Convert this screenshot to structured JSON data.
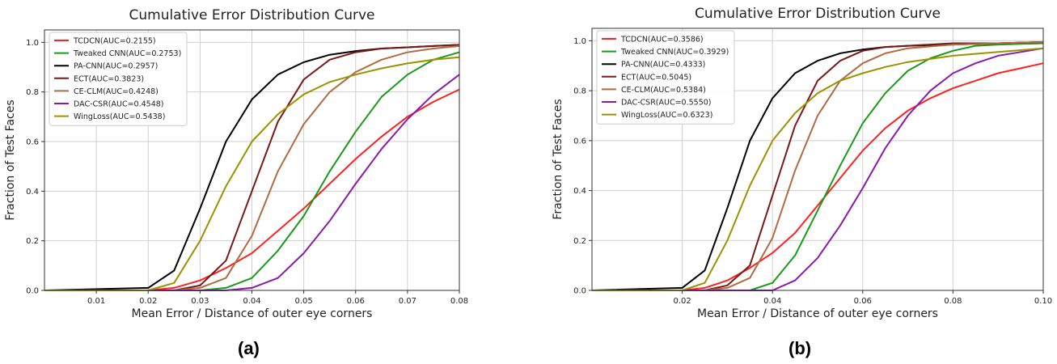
{
  "charts": [
    {
      "type": "line",
      "title": "Cumulative Error Distribution Curve",
      "xlabel": "Mean Error / Distance of outer eye corners",
      "ylabel": "Fraction of Test Faces",
      "caption": "(a)",
      "xlim": [
        0,
        0.08
      ],
      "ylim": [
        0,
        1.05
      ],
      "xticks": [
        0.01,
        0.02,
        0.03,
        0.04,
        0.05,
        0.06,
        0.07,
        0.08
      ],
      "yticks": [
        0.0,
        0.2,
        0.4,
        0.6,
        0.8,
        1.0
      ],
      "grid": true,
      "legend_position": "top-left",
      "series": [
        {
          "name": "TCDCN(AUC=0.2155)",
          "color": "#ff2020",
          "x": [
            0,
            0.02,
            0.025,
            0.03,
            0.035,
            0.04,
            0.045,
            0.05,
            0.055,
            0.06,
            0.065,
            0.07,
            0.075,
            0.08
          ],
          "y": [
            0,
            0,
            0.01,
            0.04,
            0.09,
            0.15,
            0.24,
            0.33,
            0.43,
            0.53,
            0.62,
            0.7,
            0.76,
            0.81
          ]
        },
        {
          "name": "Tweaked CNN(AUC=0.2753)",
          "color": "#1a9a1a",
          "x": [
            0,
            0.03,
            0.035,
            0.04,
            0.045,
            0.05,
            0.055,
            0.06,
            0.065,
            0.07,
            0.075,
            0.08
          ],
          "y": [
            0,
            0,
            0.01,
            0.05,
            0.16,
            0.3,
            0.48,
            0.64,
            0.78,
            0.87,
            0.93,
            0.96
          ]
        },
        {
          "name": "PA-CNN(AUC=0.2957)",
          "color": "#000000",
          "x": [
            0,
            0.02,
            0.025,
            0.03,
            0.035,
            0.04,
            0.045,
            0.05,
            0.055,
            0.06,
            0.065,
            0.07,
            0.075,
            0.08
          ],
          "y": [
            0,
            0.01,
            0.08,
            0.33,
            0.6,
            0.77,
            0.87,
            0.92,
            0.95,
            0.965,
            0.975,
            0.98,
            0.985,
            0.99
          ]
        },
        {
          "name": "ECT(AUC=0.3823)",
          "color": "#7a1818",
          "x": [
            0,
            0.025,
            0.03,
            0.035,
            0.04,
            0.045,
            0.05,
            0.055,
            0.06,
            0.065,
            0.07,
            0.075,
            0.08
          ],
          "y": [
            0,
            0,
            0.02,
            0.12,
            0.4,
            0.68,
            0.85,
            0.93,
            0.96,
            0.975,
            0.98,
            0.985,
            0.99
          ]
        },
        {
          "name": "CE-CLM(AUC=0.4248)",
          "color": "#b06b40",
          "x": [
            0,
            0.025,
            0.03,
            0.035,
            0.04,
            0.045,
            0.05,
            0.055,
            0.06,
            0.065,
            0.07,
            0.075,
            0.08
          ],
          "y": [
            0,
            0,
            0.01,
            0.05,
            0.22,
            0.48,
            0.67,
            0.8,
            0.88,
            0.93,
            0.96,
            0.975,
            0.985
          ]
        },
        {
          "name": "DAC-CSR(AUC=0.4548)",
          "color": "#8a1aa8",
          "x": [
            0,
            0.035,
            0.04,
            0.045,
            0.05,
            0.055,
            0.06,
            0.065,
            0.07,
            0.075,
            0.08
          ],
          "y": [
            0,
            0,
            0.01,
            0.05,
            0.15,
            0.28,
            0.43,
            0.57,
            0.69,
            0.79,
            0.87
          ]
        },
        {
          "name": "WingLoss(AUC=0.5438)",
          "color": "#9c9200",
          "x": [
            0,
            0.02,
            0.025,
            0.03,
            0.035,
            0.04,
            0.045,
            0.05,
            0.055,
            0.06,
            0.065,
            0.07,
            0.075,
            0.08
          ],
          "y": [
            0,
            0,
            0.03,
            0.2,
            0.42,
            0.6,
            0.71,
            0.79,
            0.84,
            0.87,
            0.895,
            0.915,
            0.93,
            0.94
          ]
        }
      ]
    },
    {
      "type": "line",
      "title": "Cumulative Error Distribution Curve",
      "xlabel": "Mean Error / Distance of outer eye corners",
      "ylabel": "Fraction of Test Faces",
      "caption": "(b)",
      "xlim": [
        0,
        0.1
      ],
      "ylim": [
        0,
        1.05
      ],
      "xticks": [
        0.02,
        0.04,
        0.06,
        0.08,
        0.1
      ],
      "yticks": [
        0.0,
        0.2,
        0.4,
        0.6,
        0.8,
        1.0
      ],
      "grid": true,
      "legend_position": "top-left",
      "series": [
        {
          "name": "TCDCN(AUC=0.3586)",
          "color": "#ff2020",
          "x": [
            0,
            0.02,
            0.025,
            0.03,
            0.035,
            0.04,
            0.045,
            0.05,
            0.055,
            0.06,
            0.065,
            0.07,
            0.075,
            0.08,
            0.085,
            0.09,
            0.095,
            0.1
          ],
          "y": [
            0,
            0,
            0.01,
            0.04,
            0.09,
            0.15,
            0.23,
            0.34,
            0.45,
            0.56,
            0.65,
            0.72,
            0.77,
            0.81,
            0.84,
            0.87,
            0.89,
            0.91
          ]
        },
        {
          "name": "Tweaked CNN(AUC=0.3929)",
          "color": "#1a9a1a",
          "x": [
            0,
            0.035,
            0.04,
            0.045,
            0.05,
            0.055,
            0.06,
            0.065,
            0.07,
            0.075,
            0.08,
            0.085,
            0.09,
            0.1
          ],
          "y": [
            0,
            0,
            0.03,
            0.14,
            0.32,
            0.5,
            0.67,
            0.79,
            0.88,
            0.93,
            0.96,
            0.98,
            0.985,
            0.99
          ]
        },
        {
          "name": "PA-CNN(AUC=0.4333)",
          "color": "#000000",
          "x": [
            0,
            0.02,
            0.025,
            0.03,
            0.035,
            0.04,
            0.045,
            0.05,
            0.055,
            0.06,
            0.065,
            0.07,
            0.08,
            0.09,
            0.1
          ],
          "y": [
            0,
            0.01,
            0.08,
            0.33,
            0.6,
            0.77,
            0.87,
            0.92,
            0.95,
            0.965,
            0.975,
            0.98,
            0.985,
            0.99,
            0.995
          ]
        },
        {
          "name": "ECT(AUC=0.5045)",
          "color": "#7a1818",
          "x": [
            0,
            0.025,
            0.03,
            0.035,
            0.04,
            0.045,
            0.05,
            0.055,
            0.06,
            0.065,
            0.07,
            0.08,
            0.09,
            0.1
          ],
          "y": [
            0,
            0,
            0.02,
            0.1,
            0.38,
            0.66,
            0.84,
            0.92,
            0.96,
            0.975,
            0.98,
            0.99,
            0.99,
            0.995
          ]
        },
        {
          "name": "CE-CLM(AUC=0.5384)",
          "color": "#b06b40",
          "x": [
            0,
            0.025,
            0.03,
            0.035,
            0.04,
            0.045,
            0.05,
            0.055,
            0.06,
            0.065,
            0.07,
            0.08,
            0.09,
            0.1
          ],
          "y": [
            0,
            0,
            0.01,
            0.05,
            0.21,
            0.48,
            0.7,
            0.84,
            0.91,
            0.95,
            0.97,
            0.985,
            0.99,
            0.995
          ]
        },
        {
          "name": "DAC-CSR(AUC=0.5550)",
          "color": "#8a1aa8",
          "x": [
            0,
            0.04,
            0.045,
            0.05,
            0.055,
            0.06,
            0.065,
            0.07,
            0.075,
            0.08,
            0.085,
            0.09,
            0.095,
            0.1
          ],
          "y": [
            0,
            0,
            0.04,
            0.13,
            0.26,
            0.41,
            0.57,
            0.7,
            0.8,
            0.87,
            0.91,
            0.94,
            0.955,
            0.97
          ]
        },
        {
          "name": "WingLoss(AUC=0.6323)",
          "color": "#9c9200",
          "x": [
            0,
            0.02,
            0.025,
            0.03,
            0.035,
            0.04,
            0.045,
            0.05,
            0.055,
            0.06,
            0.065,
            0.07,
            0.08,
            0.09,
            0.1
          ],
          "y": [
            0,
            0,
            0.03,
            0.2,
            0.42,
            0.6,
            0.71,
            0.79,
            0.84,
            0.87,
            0.895,
            0.915,
            0.94,
            0.955,
            0.97
          ]
        }
      ]
    }
  ]
}
